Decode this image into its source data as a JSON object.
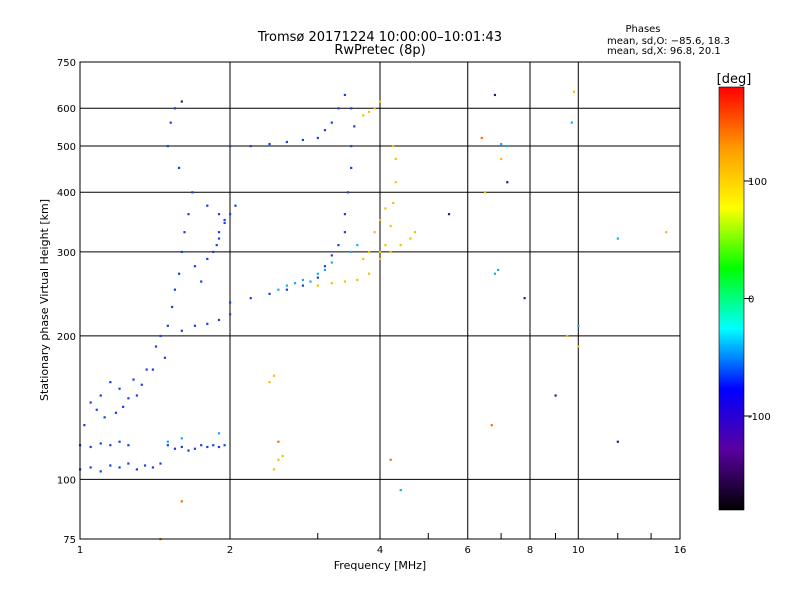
{
  "chart_data": {
    "type": "scatter",
    "title": "Tromsø 20171224 10:00:00–10:01:43",
    "subtitle": "RwPretec (8p)",
    "xlabel": "Frequency [MHz]",
    "ylabel": "Stationary phase Virtual Height [km]",
    "x_scale": "log",
    "y_scale": "log",
    "xlim": [
      1,
      16
    ],
    "ylim": [
      75,
      750
    ],
    "x_ticks": [
      1,
      2,
      4,
      6,
      8,
      10,
      16
    ],
    "y_ticks": [
      75,
      100,
      200,
      300,
      400,
      500,
      600,
      750
    ],
    "grid": true,
    "phase_stats": {
      "heading": "Phases",
      "line_o": "mean, sd,O: −85.6, 18.3",
      "line_x": "mean, sd,X:  96.8, 20.1"
    },
    "colorbar": {
      "label": "[deg]",
      "range": [
        -180,
        180
      ],
      "ticks": [
        100,
        0,
        -100
      ],
      "colors": [
        "#ff0000",
        "#ff9900",
        "#ffff00",
        "#00ff00",
        "#00ffff",
        "#0000ff",
        "#5a00a0",
        "#000000"
      ]
    },
    "series": [
      {
        "color": "#1a3fe0",
        "points": [
          [
            1.0,
            105
          ],
          [
            1.05,
            106
          ],
          [
            1.1,
            104
          ],
          [
            1.15,
            107
          ],
          [
            1.2,
            106
          ],
          [
            1.25,
            108
          ],
          [
            1.3,
            105
          ],
          [
            1.35,
            107
          ],
          [
            1.4,
            106
          ],
          [
            1.45,
            108
          ],
          [
            1.0,
            118
          ],
          [
            1.05,
            117
          ],
          [
            1.1,
            119
          ],
          [
            1.15,
            118
          ],
          [
            1.2,
            120
          ],
          [
            1.25,
            118
          ],
          [
            1.5,
            118
          ],
          [
            1.55,
            116
          ],
          [
            1.6,
            117
          ],
          [
            1.65,
            115
          ],
          [
            1.7,
            116
          ],
          [
            1.75,
            118
          ],
          [
            1.8,
            117
          ],
          [
            1.85,
            118
          ],
          [
            1.9,
            117
          ],
          [
            1.95,
            118
          ],
          [
            1.02,
            130
          ],
          [
            1.05,
            145
          ],
          [
            1.08,
            140
          ],
          [
            1.1,
            150
          ],
          [
            1.12,
            135
          ],
          [
            1.15,
            160
          ],
          [
            1.18,
            138
          ],
          [
            1.2,
            155
          ],
          [
            1.22,
            142
          ],
          [
            1.25,
            148
          ],
          [
            1.28,
            162
          ],
          [
            1.3,
            150
          ],
          [
            1.33,
            158
          ],
          [
            1.36,
            170
          ],
          [
            1.4,
            170
          ],
          [
            1.42,
            190
          ],
          [
            1.45,
            200
          ],
          [
            1.48,
            180
          ],
          [
            1.5,
            210
          ],
          [
            1.53,
            230
          ],
          [
            1.55,
            250
          ],
          [
            1.58,
            270
          ],
          [
            1.6,
            300
          ],
          [
            1.62,
            330
          ],
          [
            1.65,
            360
          ],
          [
            1.68,
            400
          ],
          [
            1.5,
            500
          ],
          [
            1.52,
            560
          ],
          [
            1.55,
            600
          ],
          [
            1.58,
            450
          ],
          [
            1.6,
            205
          ],
          [
            1.7,
            210
          ],
          [
            1.8,
            212
          ],
          [
            1.9,
            216
          ],
          [
            2.0,
            222
          ],
          [
            1.7,
            280
          ],
          [
            1.75,
            260
          ],
          [
            1.8,
            290
          ],
          [
            1.85,
            300
          ],
          [
            1.9,
            320
          ],
          [
            1.95,
            350
          ],
          [
            1.8,
            375
          ],
          [
            1.9,
            360
          ],
          [
            2.0,
            235
          ],
          [
            2.2,
            240
          ],
          [
            2.4,
            245
          ],
          [
            2.6,
            250
          ],
          [
            2.8,
            255
          ],
          [
            3.0,
            265
          ],
          [
            3.1,
            280
          ],
          [
            3.2,
            295
          ],
          [
            3.3,
            310
          ],
          [
            3.4,
            330
          ],
          [
            3.4,
            360
          ],
          [
            3.45,
            400
          ],
          [
            3.5,
            450
          ],
          [
            3.5,
            500
          ],
          [
            3.55,
            550
          ],
          [
            3.5,
            600
          ],
          [
            3.4,
            640
          ],
          [
            3.3,
            600
          ],
          [
            3.2,
            560
          ],
          [
            3.1,
            540
          ],
          [
            3.0,
            520
          ],
          [
            2.8,
            515
          ],
          [
            2.6,
            510
          ],
          [
            2.4,
            505
          ],
          [
            2.2,
            500
          ],
          [
            2.0,
            500
          ],
          [
            1.9,
            330
          ],
          [
            1.95,
            345
          ],
          [
            2.0,
            360
          ],
          [
            2.05,
            375
          ],
          [
            1.88,
            310
          ]
        ]
      },
      {
        "color": "#1aa8f0",
        "points": [
          [
            2.5,
            250
          ],
          [
            2.6,
            255
          ],
          [
            2.7,
            258
          ],
          [
            2.8,
            262
          ],
          [
            2.9,
            260
          ],
          [
            3.0,
            270
          ],
          [
            3.1,
            275
          ],
          [
            3.2,
            285
          ],
          [
            3.5,
            300
          ],
          [
            3.6,
            310
          ],
          [
            1.5,
            120
          ],
          [
            1.6,
            122
          ],
          [
            1.9,
            125
          ],
          [
            6.8,
            270
          ],
          [
            6.9,
            275
          ],
          [
            9.7,
            560
          ],
          [
            10.0,
            210
          ],
          [
            12.0,
            320
          ],
          [
            7.2,
            500
          ],
          [
            7.0,
            505
          ],
          [
            4.4,
            95
          ]
        ]
      },
      {
        "color": "#f2c200",
        "points": [
          [
            3.0,
            255
          ],
          [
            3.2,
            258
          ],
          [
            3.4,
            260
          ],
          [
            3.6,
            262
          ],
          [
            3.8,
            270
          ],
          [
            4.0,
            290
          ],
          [
            4.1,
            310
          ],
          [
            4.2,
            340
          ],
          [
            4.25,
            380
          ],
          [
            4.3,
            420
          ],
          [
            4.3,
            470
          ],
          [
            4.25,
            500
          ],
          [
            3.9,
            330
          ],
          [
            4.0,
            350
          ],
          [
            4.1,
            370
          ],
          [
            4.0,
            300
          ],
          [
            3.7,
            290
          ],
          [
            3.8,
            300
          ],
          [
            4.2,
            300
          ],
          [
            4.4,
            310
          ],
          [
            4.6,
            320
          ],
          [
            4.7,
            330
          ],
          [
            2.45,
            105
          ],
          [
            2.5,
            110
          ],
          [
            2.55,
            112
          ],
          [
            2.4,
            160
          ],
          [
            2.45,
            165
          ],
          [
            3.9,
            600
          ],
          [
            4.0,
            620
          ],
          [
            3.8,
            590
          ],
          [
            3.7,
            580
          ],
          [
            6.5,
            400
          ],
          [
            9.8,
            650
          ],
          [
            9.5,
            200
          ],
          [
            10.0,
            190
          ],
          [
            15.0,
            330
          ],
          [
            7.0,
            470
          ]
        ]
      },
      {
        "color": "#ff6a00",
        "points": [
          [
            2.5,
            120
          ],
          [
            4.2,
            110
          ],
          [
            6.4,
            520
          ],
          [
            6.7,
            130
          ],
          [
            1.45,
            75
          ],
          [
            1.6,
            90
          ]
        ]
      },
      {
        "color": "#2a1a88",
        "points": [
          [
            1.6,
            620
          ],
          [
            6.8,
            640
          ],
          [
            7.2,
            420
          ],
          [
            7.8,
            240
          ],
          [
            9.0,
            150
          ],
          [
            12.0,
            120
          ],
          [
            5.5,
            360
          ]
        ]
      }
    ]
  }
}
